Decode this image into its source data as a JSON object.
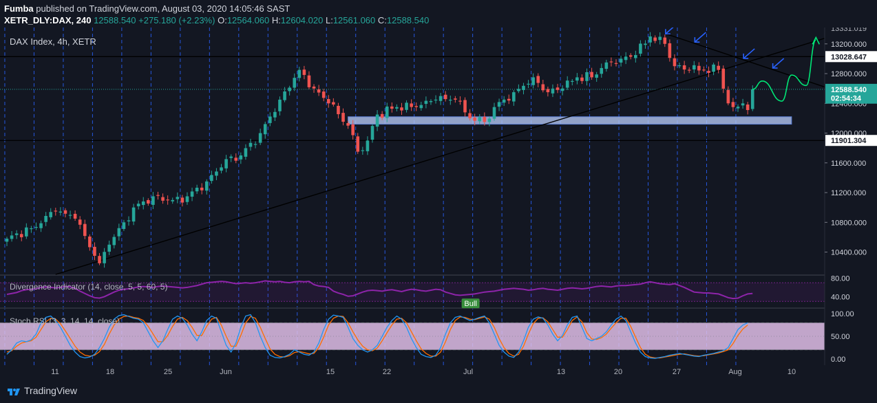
{
  "header": {
    "author": "Fumba",
    "published_text": "published on TradingView.com, August 03, 2020 14:05:46 SAST",
    "symbol": "XETR_DLY:DAX, 240",
    "last": "12588.540",
    "change": "+275.180 (+2.23%)",
    "o_label": "O:",
    "o": "12564.060",
    "h_label": "H:",
    "h": "12604.020",
    "l_label": "L:",
    "l": "12561.060",
    "c_label": "C:",
    "c": "12588.540"
  },
  "footer": {
    "brand": "TradingView"
  },
  "colors": {
    "background": "#131722",
    "up": "#26a69a",
    "down": "#ef5350",
    "grid": "#2962ff",
    "divergence": "#8e24aa",
    "stoch_k": "#2196f3",
    "stoch_d": "#ff6d00",
    "stoch_band": "#e1bee7",
    "zone": "#b3c5f2",
    "projection": "#00e676"
  },
  "chart_data": [
    {
      "type": "candlestick",
      "title": "DAX Index, 4h, XETR",
      "ylim": [
        10100,
        13420
      ],
      "y_ticks": [
        "13200.000",
        "12800.000",
        "12400.000",
        "12000.000",
        "11600.000",
        "11200.000",
        "10800.000",
        "10400.000"
      ],
      "y_tick_values": [
        13200,
        12800,
        12400,
        12000,
        11600,
        11200,
        10800,
        10400
      ],
      "top_cut_label": "13331.019",
      "x_labels": [
        "11",
        "18",
        "25",
        "Jun",
        "15",
        "22",
        "Jul",
        "13",
        "20",
        "27",
        "Aug",
        "10"
      ],
      "price_labels": [
        {
          "text": "13028.647",
          "value": 13028.647,
          "style": "line"
        },
        {
          "text": "12588.540",
          "value": 12588.54,
          "style": "last"
        },
        {
          "text": "02:54:34",
          "value": 12470,
          "style": "timer"
        },
        {
          "text": "11901.304",
          "value": 11901.304,
          "style": "line"
        }
      ],
      "horizontal_lines": [
        13028.647,
        11901.304
      ],
      "support_zone": {
        "from": 12120,
        "to": 12220
      },
      "trendline_up": [
        {
          "bar": 10,
          "value": 10100
        },
        {
          "bar": 173,
          "value": 13380
        }
      ],
      "trendline_down": [
        {
          "bar": 135,
          "value": 13340
        },
        {
          "bar": 171,
          "value": 12550
        }
      ],
      "close_anchors": [
        [
          0,
          10580
        ],
        [
          5,
          10720
        ],
        [
          10,
          10950
        ],
        [
          14,
          10850
        ],
        [
          18,
          10350
        ],
        [
          19,
          10250
        ],
        [
          21,
          10500
        ],
        [
          24,
          10800
        ],
        [
          26,
          11000
        ],
        [
          30,
          11150
        ],
        [
          34,
          11100
        ],
        [
          37,
          11150
        ],
        [
          41,
          11350
        ],
        [
          45,
          11650
        ],
        [
          48,
          11700
        ],
        [
          52,
          12000
        ],
        [
          56,
          12450
        ],
        [
          60,
          12850
        ],
        [
          63,
          12600
        ],
        [
          66,
          12400
        ],
        [
          70,
          12100
        ],
        [
          72,
          11750
        ],
        [
          74,
          11900
        ],
        [
          76,
          12250
        ],
        [
          80,
          12350
        ],
        [
          84,
          12350
        ],
        [
          88,
          12450
        ],
        [
          92,
          12450
        ],
        [
          95,
          12200
        ],
        [
          98,
          12150
        ],
        [
          100,
          12350
        ],
        [
          104,
          12550
        ],
        [
          108,
          12750
        ],
        [
          111,
          12550
        ],
        [
          114,
          12600
        ],
        [
          117,
          12750
        ],
        [
          120,
          12750
        ],
        [
          123,
          12950
        ],
        [
          126,
          13000
        ],
        [
          129,
          13050
        ],
        [
          132,
          13300
        ],
        [
          135,
          13200
        ],
        [
          137,
          12900
        ],
        [
          140,
          12850
        ],
        [
          143,
          12850
        ],
        [
          146,
          12850
        ],
        [
          148,
          12400
        ],
        [
          149,
          12350
        ],
        [
          151,
          12400
        ],
        [
          152,
          12310
        ],
        [
          153,
          12588
        ]
      ],
      "projection_path": [
        [
          153,
          12588
        ],
        [
          155,
          12700
        ],
        [
          159,
          12430
        ],
        [
          161,
          12780
        ],
        [
          164,
          12640
        ],
        [
          166,
          13250
        ]
      ],
      "arrow_markers": [
        {
          "bar": 136,
          "value": 13390
        },
        {
          "bar": 142,
          "value": 13280
        },
        {
          "bar": 152,
          "value": 13060
        },
        {
          "bar": 158,
          "value": 12930
        }
      ]
    },
    {
      "type": "line",
      "title": "Divergence Indicator (14, close, 5, 5, 60, 5)",
      "ylim": [
        20,
        85
      ],
      "y_ticks": [
        "80.00",
        "40.00"
      ],
      "y_tick_values": [
        80,
        40
      ],
      "band": [
        30,
        70
      ],
      "tag": "Bull",
      "tag_bar": 95,
      "series": [
        {
          "name": "",
          "values": [
            45,
            47,
            49,
            53,
            55,
            56,
            57,
            60,
            61,
            60,
            59,
            60,
            62,
            61,
            58,
            52,
            47,
            42,
            38,
            37,
            40,
            45,
            50,
            54,
            56,
            57,
            59,
            61,
            62,
            61,
            60,
            62,
            63,
            62,
            61,
            60,
            59,
            60,
            62,
            64,
            67,
            70,
            71,
            72,
            73,
            72,
            70,
            68,
            69,
            70,
            69,
            70,
            72,
            74,
            73,
            72,
            73,
            71,
            70,
            72,
            73,
            72,
            73,
            66,
            63,
            62,
            60,
            52,
            48,
            45,
            41,
            42,
            46,
            50,
            53,
            54,
            53,
            52,
            54,
            55,
            53,
            51,
            54,
            56,
            55,
            53,
            52,
            54,
            56,
            55,
            50,
            47,
            44,
            43,
            44,
            45,
            46,
            48,
            50,
            51,
            52,
            54,
            56,
            57,
            58,
            57,
            56,
            54,
            55,
            57,
            58,
            56,
            55,
            54,
            56,
            58,
            59,
            58,
            57,
            58,
            60,
            62,
            63,
            62,
            61,
            63,
            64,
            64,
            65,
            66,
            67,
            70,
            72,
            70,
            68,
            67,
            66,
            68,
            64,
            60,
            55,
            50,
            49,
            48,
            48,
            47,
            46,
            42,
            38,
            36,
            37,
            42,
            46,
            47
          ]
        }
      ]
    },
    {
      "type": "line",
      "title": "Stoch RSI (3, 3, 14, 14, close)",
      "ylim": [
        -8,
        108
      ],
      "y_ticks": [
        "100.00",
        "50.00",
        "0.00"
      ],
      "y_tick_values": [
        100,
        50,
        0
      ],
      "band": [
        20,
        80
      ],
      "series": [
        {
          "name": "",
          "values": [
            10,
            20,
            35,
            40,
            38,
            42,
            55,
            80,
            92,
            95,
            85,
            70,
            50,
            30,
            15,
            5,
            2,
            4,
            10,
            25,
            45,
            70,
            88,
            96,
            98,
            94,
            90,
            88,
            80,
            60,
            40,
            25,
            40,
            65,
            88,
            95,
            90,
            75,
            55,
            40,
            60,
            85,
            95,
            90,
            60,
            30,
            15,
            35,
            70,
            95,
            98,
            80,
            50,
            25,
            8,
            3,
            2,
            5,
            10,
            20,
            15,
            10,
            8,
            15,
            35,
            65,
            88,
            97,
            95,
            92,
            70,
            45,
            30,
            20,
            15,
            20,
            30,
            50,
            70,
            85,
            95,
            88,
            70,
            45,
            25,
            10,
            5,
            3,
            8,
            25,
            55,
            80,
            92,
            95,
            90,
            85,
            88,
            92,
            95,
            80,
            55,
            30,
            15,
            6,
            3,
            15,
            40,
            70,
            88,
            93,
            90,
            75,
            55,
            40,
            52,
            75,
            92,
            95,
            70,
            45,
            40,
            45,
            50,
            60,
            75,
            88,
            95,
            85,
            60,
            35,
            15,
            5,
            2,
            1,
            3,
            5,
            8,
            10,
            12,
            10,
            8,
            6,
            5,
            8,
            10,
            12,
            15,
            18,
            25,
            45,
            65,
            75,
            80
          ]
        },
        {
          "name": "",
          "values": [
            15,
            18,
            28,
            35,
            38,
            40,
            48,
            65,
            82,
            90,
            88,
            78,
            62,
            45,
            28,
            15,
            8,
            6,
            8,
            16,
            32,
            55,
            75,
            88,
            94,
            95,
            92,
            90,
            85,
            72,
            55,
            38,
            38,
            52,
            72,
            88,
            92,
            85,
            70,
            52,
            52,
            72,
            88,
            92,
            75,
            50,
            28,
            28,
            52,
            80,
            94,
            90,
            70,
            45,
            22,
            10,
            5,
            4,
            7,
            14,
            16,
            14,
            11,
            12,
            25,
            48,
            75,
            90,
            95,
            94,
            80,
            60,
            42,
            28,
            20,
            18,
            24,
            40,
            58,
            75,
            88,
            90,
            80,
            60,
            40,
            22,
            12,
            6,
            6,
            15,
            38,
            65,
            85,
            93,
            92,
            88,
            87,
            90,
            93,
            88,
            70,
            45,
            25,
            12,
            6,
            10,
            28,
            55,
            78,
            90,
            91,
            82,
            65,
            48,
            48,
            65,
            85,
            93,
            82,
            58,
            44,
            43,
            47,
            55,
            68,
            80,
            90,
            90,
            72,
            48,
            25,
            10,
            4,
            2,
            2,
            4,
            6,
            8,
            10,
            11,
            9,
            7,
            6,
            7,
            9,
            11,
            13,
            16,
            20,
            34,
            52,
            66,
            75
          ]
        }
      ]
    }
  ]
}
